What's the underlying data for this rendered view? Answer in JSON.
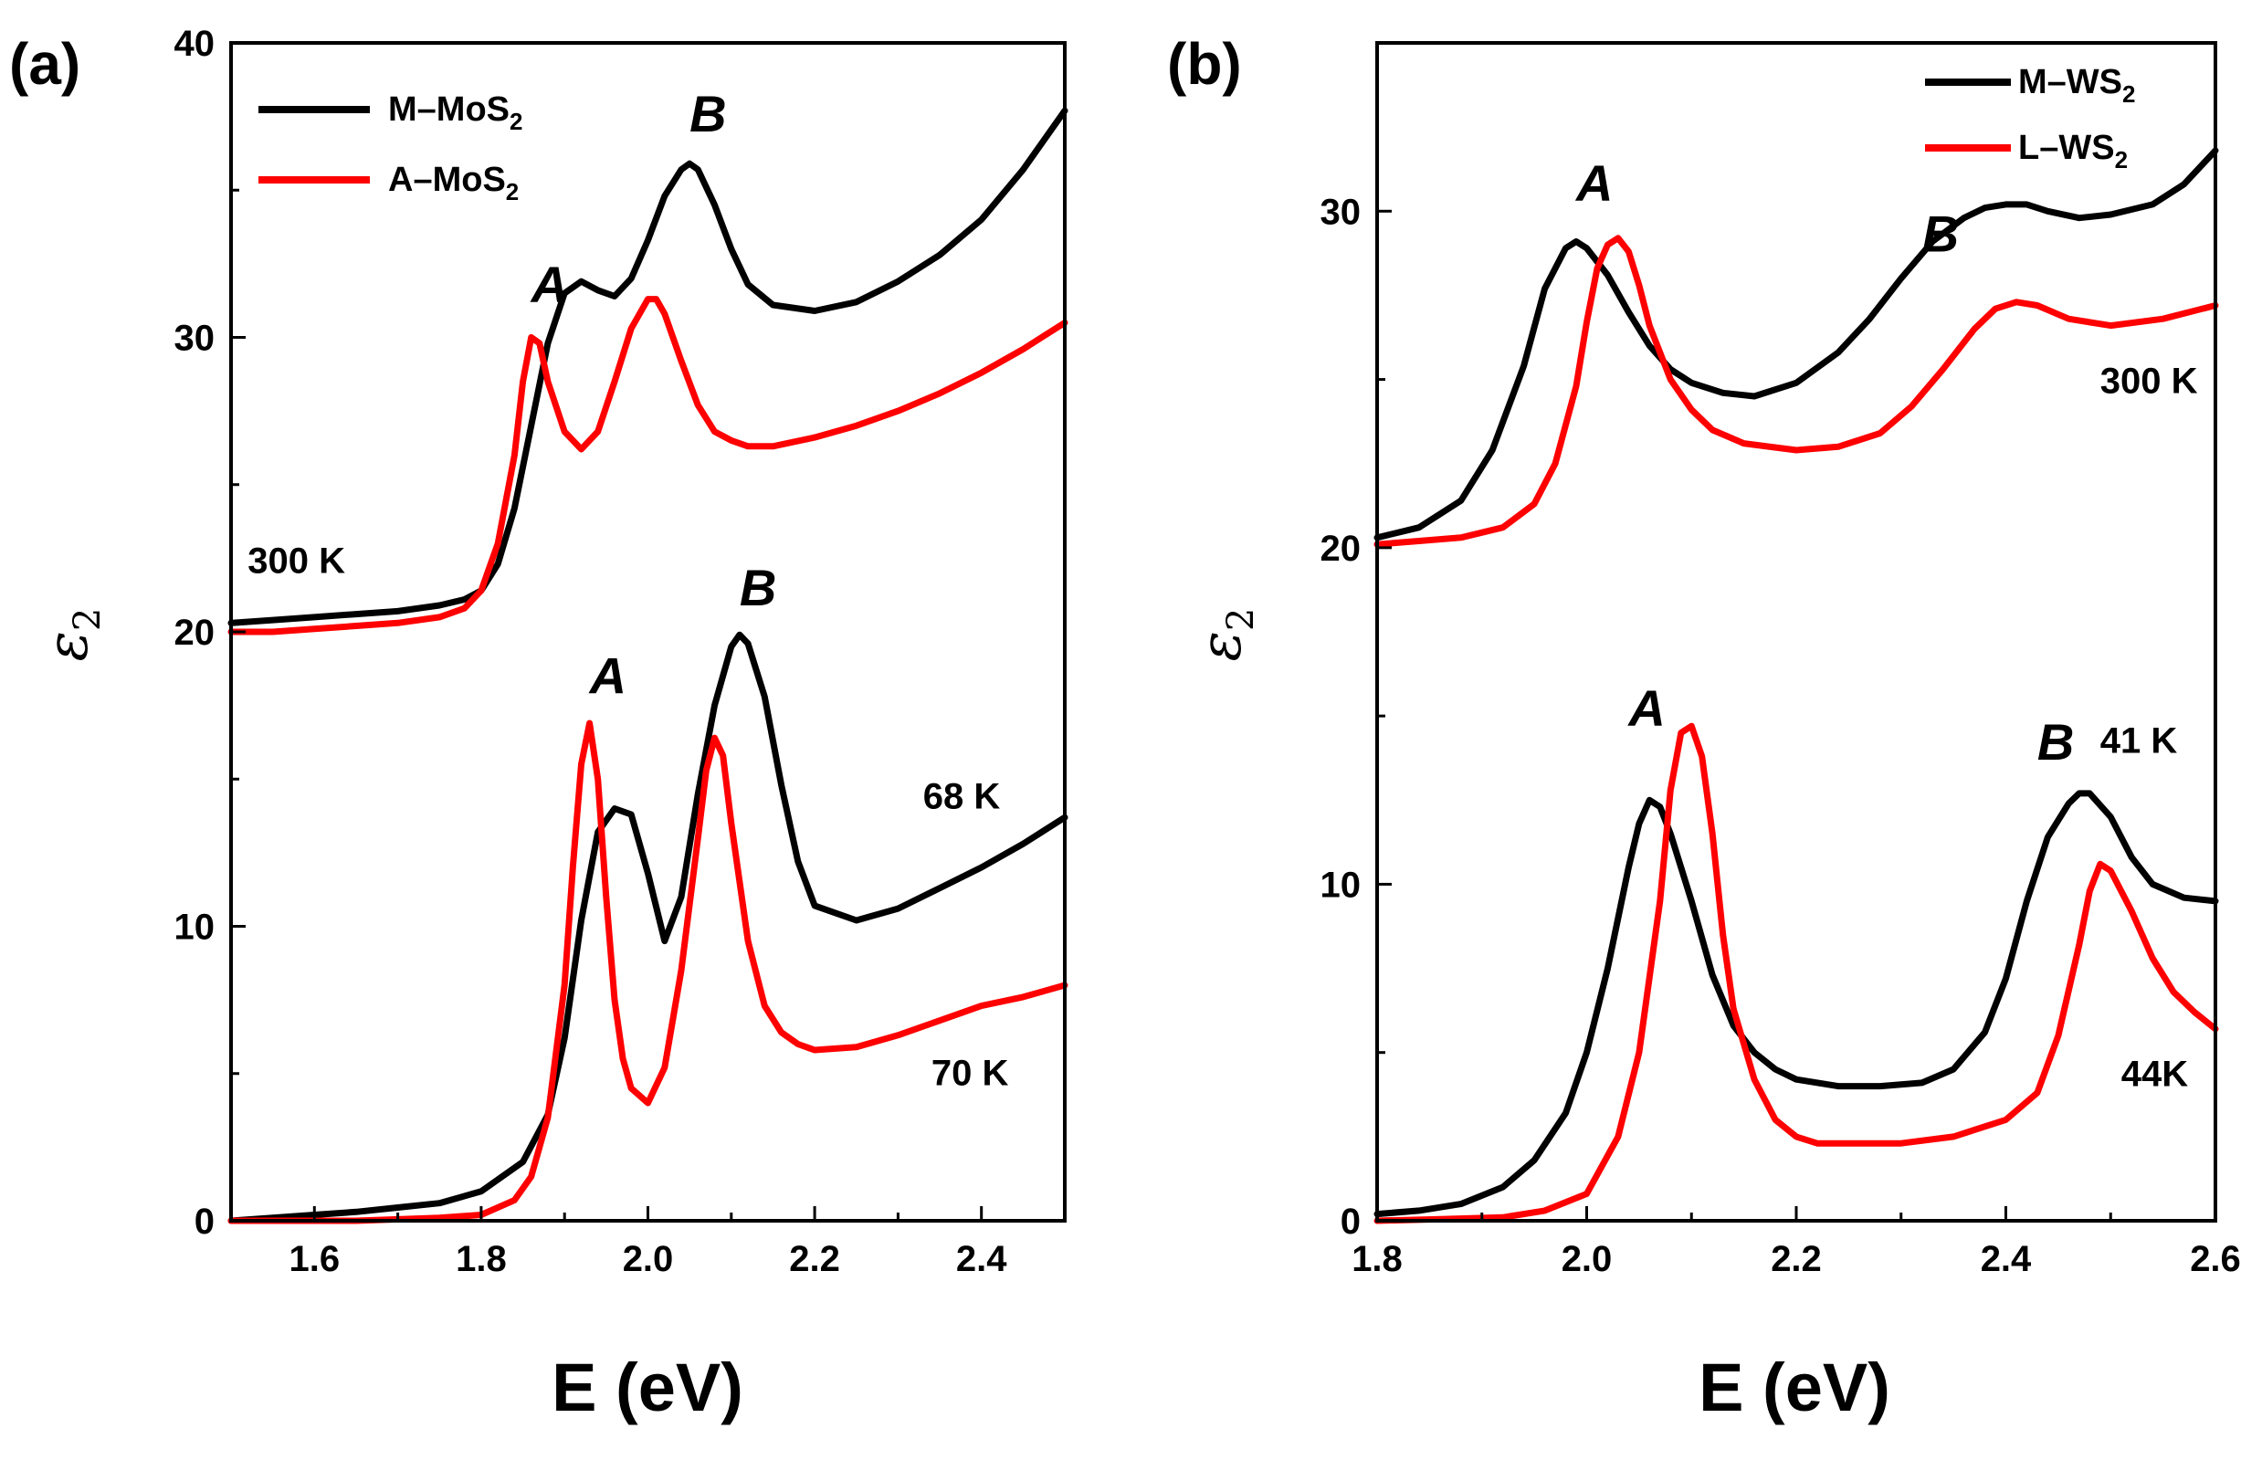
{
  "chart_data": [
    {
      "type": "line",
      "panel_label": "(a)",
      "xlabel": "E (eV)",
      "ylabel": "ε",
      "ylabel_sub": "2",
      "xlim": [
        1.5,
        2.5
      ],
      "ylim": [
        0,
        40
      ],
      "xticks": [
        1.6,
        1.8,
        2.0,
        2.2,
        2.4
      ],
      "xtick_labels": [
        "1.6",
        "1.8",
        "2.0",
        "2.2",
        "2.4"
      ],
      "yticks": [
        0,
        10,
        20,
        30,
        40
      ],
      "ytick_labels": [
        "0",
        "10",
        "20",
        "30",
        "40"
      ],
      "legend": [
        {
          "name": "M–MoS",
          "sub": "2",
          "color": "#000000"
        },
        {
          "name": "A–MoS",
          "sub": "2",
          "color": "#ff0000"
        }
      ],
      "annotations": [
        {
          "text": "A",
          "x": 1.86,
          "y": 31.2,
          "kind": "peak"
        },
        {
          "text": "B",
          "x": 2.05,
          "y": 37.0,
          "kind": "peak"
        },
        {
          "text": "A",
          "x": 1.93,
          "y": 17.9,
          "kind": "peak"
        },
        {
          "text": "B",
          "x": 2.11,
          "y": 20.9,
          "kind": "peak"
        },
        {
          "text": "300 K",
          "x": 1.52,
          "y": 22.0,
          "kind": "temp"
        },
        {
          "text": "68 K",
          "x": 2.33,
          "y": 14.0,
          "kind": "temp"
        },
        {
          "text": "70 K",
          "x": 2.34,
          "y": 4.6,
          "kind": "temp"
        }
      ],
      "series": [
        {
          "name": "M–MoS2 300 K",
          "color": "#000000",
          "x": [
            1.5,
            1.55,
            1.6,
            1.65,
            1.7,
            1.75,
            1.78,
            1.8,
            1.82,
            1.84,
            1.86,
            1.88,
            1.9,
            1.92,
            1.94,
            1.96,
            1.98,
            2.0,
            2.02,
            2.04,
            2.05,
            2.06,
            2.08,
            2.1,
            2.12,
            2.15,
            2.2,
            2.25,
            2.3,
            2.35,
            2.4,
            2.45,
            2.5
          ],
          "y": [
            20.3,
            20.4,
            20.5,
            20.6,
            20.7,
            20.9,
            21.1,
            21.4,
            22.3,
            24.2,
            27.0,
            29.8,
            31.5,
            31.9,
            31.6,
            31.4,
            32.0,
            33.3,
            34.8,
            35.7,
            35.9,
            35.7,
            34.5,
            33.0,
            31.8,
            31.1,
            30.9,
            31.2,
            31.9,
            32.8,
            34.0,
            35.7,
            37.7
          ]
        },
        {
          "name": "A–MoS2 300 K",
          "color": "#ff0000",
          "x": [
            1.5,
            1.55,
            1.6,
            1.65,
            1.7,
            1.75,
            1.78,
            1.8,
            1.82,
            1.84,
            1.85,
            1.86,
            1.87,
            1.88,
            1.9,
            1.92,
            1.94,
            1.96,
            1.98,
            2.0,
            2.01,
            2.02,
            2.04,
            2.06,
            2.08,
            2.1,
            2.12,
            2.15,
            2.2,
            2.25,
            2.3,
            2.35,
            2.4,
            2.45,
            2.5
          ],
          "y": [
            20.0,
            20.0,
            20.1,
            20.2,
            20.3,
            20.5,
            20.8,
            21.4,
            23.0,
            26.0,
            28.5,
            30.0,
            29.8,
            28.5,
            26.8,
            26.2,
            26.8,
            28.5,
            30.3,
            31.3,
            31.3,
            30.8,
            29.2,
            27.7,
            26.8,
            26.5,
            26.3,
            26.3,
            26.6,
            27.0,
            27.5,
            28.1,
            28.8,
            29.6,
            30.5
          ]
        },
        {
          "name": "M–MoS2 68 K",
          "color": "#000000",
          "x": [
            1.5,
            1.55,
            1.6,
            1.65,
            1.7,
            1.75,
            1.8,
            1.85,
            1.88,
            1.9,
            1.92,
            1.94,
            1.96,
            1.98,
            2.0,
            2.02,
            2.04,
            2.06,
            2.08,
            2.1,
            2.11,
            2.12,
            2.14,
            2.16,
            2.18,
            2.2,
            2.25,
            2.3,
            2.35,
            2.4,
            2.45,
            2.5
          ],
          "y": [
            0.0,
            0.1,
            0.2,
            0.3,
            0.45,
            0.6,
            1.0,
            2.0,
            3.6,
            6.2,
            10.2,
            13.2,
            14.0,
            13.8,
            11.8,
            9.5,
            11.0,
            14.5,
            17.5,
            19.5,
            19.9,
            19.6,
            17.8,
            14.8,
            12.2,
            10.7,
            10.2,
            10.6,
            11.3,
            12.0,
            12.8,
            13.7
          ]
        },
        {
          "name": "A–MoS2 70 K",
          "color": "#ff0000",
          "x": [
            1.5,
            1.55,
            1.6,
            1.65,
            1.7,
            1.75,
            1.8,
            1.84,
            1.86,
            1.88,
            1.9,
            1.91,
            1.92,
            1.93,
            1.94,
            1.95,
            1.96,
            1.97,
            1.98,
            2.0,
            2.02,
            2.04,
            2.06,
            2.07,
            2.08,
            2.09,
            2.1,
            2.12,
            2.14,
            2.16,
            2.18,
            2.2,
            2.25,
            2.3,
            2.35,
            2.4,
            2.45,
            2.5
          ],
          "y": [
            0.0,
            0.0,
            0.0,
            0.0,
            0.05,
            0.1,
            0.2,
            0.7,
            1.5,
            3.5,
            8.0,
            12.0,
            15.5,
            16.9,
            15.0,
            11.0,
            7.5,
            5.5,
            4.5,
            4.0,
            5.2,
            8.5,
            13.0,
            15.3,
            16.4,
            15.8,
            13.5,
            9.5,
            7.3,
            6.4,
            6.0,
            5.8,
            5.9,
            6.3,
            6.8,
            7.3,
            7.6,
            8.0
          ]
        }
      ]
    },
    {
      "type": "line",
      "panel_label": "(b)",
      "xlabel": "E (eV)",
      "ylabel": "ε",
      "ylabel_sub": "2",
      "xlim": [
        1.8,
        2.6
      ],
      "ylim": [
        0,
        35
      ],
      "xticks": [
        1.8,
        2.0,
        2.2,
        2.4,
        2.6
      ],
      "xtick_labels": [
        "1.8",
        "2.0",
        "2.2",
        "2.4",
        "2.6"
      ],
      "yticks": [
        0,
        10,
        20,
        30
      ],
      "ytick_labels": [
        "0",
        "10",
        "20",
        "30"
      ],
      "legend": [
        {
          "name": "M–WS",
          "sub": "2",
          "color": "#000000"
        },
        {
          "name": "L–WS",
          "sub": "2",
          "color": "#ff0000"
        }
      ],
      "annotations": [
        {
          "text": "A",
          "x": 1.99,
          "y": 30.3,
          "kind": "peak"
        },
        {
          "text": "B",
          "x": 2.32,
          "y": 28.8,
          "kind": "peak"
        },
        {
          "text": "A",
          "x": 2.04,
          "y": 14.7,
          "kind": "peak"
        },
        {
          "text": "B",
          "x": 2.43,
          "y": 13.7,
          "kind": "peak"
        },
        {
          "text": "300 K",
          "x": 2.49,
          "y": 24.6,
          "kind": "temp"
        },
        {
          "text": "41 K",
          "x": 2.49,
          "y": 13.9,
          "kind": "temp"
        },
        {
          "text": "44K",
          "x": 2.51,
          "y": 4.0,
          "kind": "temp"
        }
      ],
      "series": [
        {
          "name": "M–WS2 300 K",
          "color": "#000000",
          "x": [
            1.8,
            1.84,
            1.88,
            1.91,
            1.94,
            1.96,
            1.98,
            1.99,
            2.0,
            2.02,
            2.04,
            2.06,
            2.08,
            2.1,
            2.13,
            2.16,
            2.2,
            2.24,
            2.27,
            2.3,
            2.33,
            2.36,
            2.38,
            2.4,
            2.42,
            2.44,
            2.47,
            2.5,
            2.54,
            2.57,
            2.6
          ],
          "y": [
            20.3,
            20.6,
            21.4,
            22.9,
            25.4,
            27.7,
            28.9,
            29.1,
            28.9,
            28.1,
            27.0,
            26.0,
            25.3,
            24.9,
            24.6,
            24.5,
            24.9,
            25.8,
            26.8,
            28.0,
            29.1,
            29.8,
            30.1,
            30.2,
            30.2,
            30.0,
            29.8,
            29.9,
            30.2,
            30.8,
            31.8
          ]
        },
        {
          "name": "L–WS2 300 K",
          "color": "#ff0000",
          "x": [
            1.8,
            1.84,
            1.88,
            1.92,
            1.95,
            1.97,
            1.99,
            2.0,
            2.01,
            2.02,
            2.03,
            2.04,
            2.05,
            2.06,
            2.08,
            2.1,
            2.12,
            2.15,
            2.2,
            2.24,
            2.28,
            2.31,
            2.34,
            2.37,
            2.39,
            2.41,
            2.43,
            2.46,
            2.5,
            2.55,
            2.6
          ],
          "y": [
            20.1,
            20.2,
            20.3,
            20.6,
            21.3,
            22.5,
            24.8,
            26.7,
            28.3,
            29.0,
            29.2,
            28.8,
            27.8,
            26.6,
            25.0,
            24.1,
            23.5,
            23.1,
            22.9,
            23.0,
            23.4,
            24.2,
            25.3,
            26.5,
            27.1,
            27.3,
            27.2,
            26.8,
            26.6,
            26.8,
            27.2
          ]
        },
        {
          "name": "M–WS2 41 K",
          "color": "#000000",
          "x": [
            1.8,
            1.84,
            1.88,
            1.92,
            1.95,
            1.98,
            2.0,
            2.02,
            2.04,
            2.05,
            2.06,
            2.07,
            2.08,
            2.1,
            2.12,
            2.14,
            2.16,
            2.18,
            2.2,
            2.24,
            2.28,
            2.32,
            2.35,
            2.38,
            2.4,
            2.42,
            2.44,
            2.46,
            2.47,
            2.48,
            2.5,
            2.52,
            2.54,
            2.57,
            2.6
          ],
          "y": [
            0.2,
            0.3,
            0.5,
            1.0,
            1.8,
            3.2,
            5.0,
            7.5,
            10.5,
            11.8,
            12.5,
            12.3,
            11.5,
            9.5,
            7.3,
            5.8,
            5.0,
            4.5,
            4.2,
            4.0,
            4.0,
            4.1,
            4.5,
            5.6,
            7.2,
            9.5,
            11.4,
            12.4,
            12.7,
            12.7,
            12.0,
            10.8,
            10.0,
            9.6,
            9.5
          ]
        },
        {
          "name": "L–WS2 44 K",
          "color": "#ff0000",
          "x": [
            1.8,
            1.86,
            1.92,
            1.96,
            2.0,
            2.03,
            2.05,
            2.07,
            2.08,
            2.09,
            2.1,
            2.11,
            2.12,
            2.13,
            2.14,
            2.16,
            2.18,
            2.2,
            2.22,
            2.26,
            2.3,
            2.35,
            2.4,
            2.43,
            2.45,
            2.47,
            2.48,
            2.49,
            2.5,
            2.52,
            2.54,
            2.56,
            2.58,
            2.6
          ],
          "y": [
            0.0,
            0.05,
            0.1,
            0.3,
            0.8,
            2.5,
            5.0,
            9.5,
            12.8,
            14.5,
            14.7,
            13.8,
            11.5,
            8.5,
            6.3,
            4.2,
            3.0,
            2.5,
            2.3,
            2.3,
            2.3,
            2.5,
            3.0,
            3.8,
            5.5,
            8.2,
            9.8,
            10.6,
            10.4,
            9.2,
            7.8,
            6.8,
            6.2,
            5.7
          ]
        }
      ]
    }
  ]
}
